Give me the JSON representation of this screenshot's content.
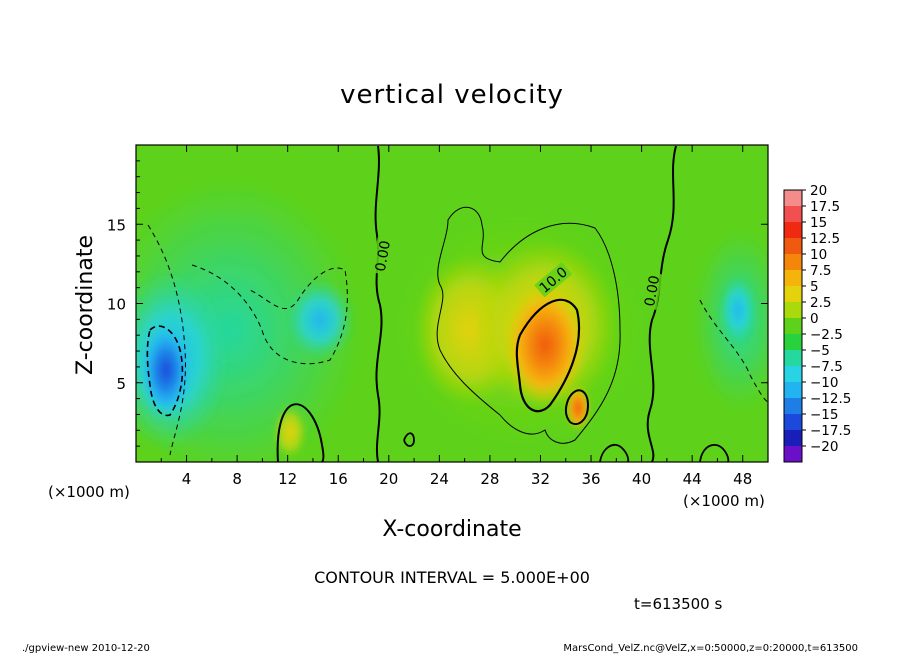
{
  "chart_data": {
    "type": "heatmap",
    "title": "vertical velocity",
    "xlabel": "X-coordinate",
    "ylabel": "Z-coordinate",
    "x_unit": "(×1000 m)",
    "z_unit": "(×1000 m)",
    "xlim": [
      0,
      50
    ],
    "ylim": [
      0,
      20
    ],
    "x_ticks": [
      4,
      8,
      12,
      16,
      20,
      24,
      28,
      32,
      36,
      40,
      44,
      48
    ],
    "y_ticks": [
      5,
      10,
      15
    ],
    "contour_interval_text": "CONTOUR INTERVAL = 5.000E+00",
    "time_text": "t=613500 s",
    "contour_labels": [
      {
        "text": "0.00",
        "x": 19.5,
        "z": 13.0,
        "rotate": -80
      },
      {
        "text": "10.0",
        "x": 33.0,
        "z": 11.5,
        "rotate": -40
      },
      {
        "text": "0.00",
        "x": 40.8,
        "z": 10.8,
        "rotate": -80
      }
    ],
    "colorbar": {
      "levels": [
        "20",
        "17.5",
        "15",
        "12.5",
        "10",
        "7.5",
        "5",
        "2.5",
        "0",
        "−2.5",
        "−5",
        "−7.5",
        "−10",
        "−12.5",
        "−15",
        "−17.5",
        "−20"
      ],
      "colors": [
        "#f48c8c",
        "#f25050",
        "#ef2a10",
        "#f05a0e",
        "#f4860a",
        "#f5b40c",
        "#e4d20c",
        "#aada0c",
        "#5ed21a",
        "#28d23c",
        "#24d8a0",
        "#28d4e4",
        "#22b4f0",
        "#1e7ee6",
        "#1c48dc",
        "#1a1eb8",
        "#6a10c8"
      ]
    },
    "features": [
      {
        "kind": "updraft",
        "x": 32.5,
        "z": 7.5,
        "peak": 13.5
      },
      {
        "kind": "updraft",
        "x": 12.0,
        "z": 2.0,
        "peak": 6.5
      },
      {
        "kind": "downdraft",
        "x": 2.5,
        "z": 6.0,
        "peak": -11.0
      },
      {
        "kind": "downdraft",
        "x": 14.5,
        "z": 9.0,
        "peak": -5.5
      },
      {
        "kind": "downdraft",
        "x": 47.5,
        "z": 10.0,
        "peak": -5.0
      }
    ]
  },
  "footer": {
    "left": "./gpview-new  2010-12-20",
    "right": "MarsCond_VelZ.nc@VelZ,x=0:50000,z=0:20000,t=613500"
  }
}
